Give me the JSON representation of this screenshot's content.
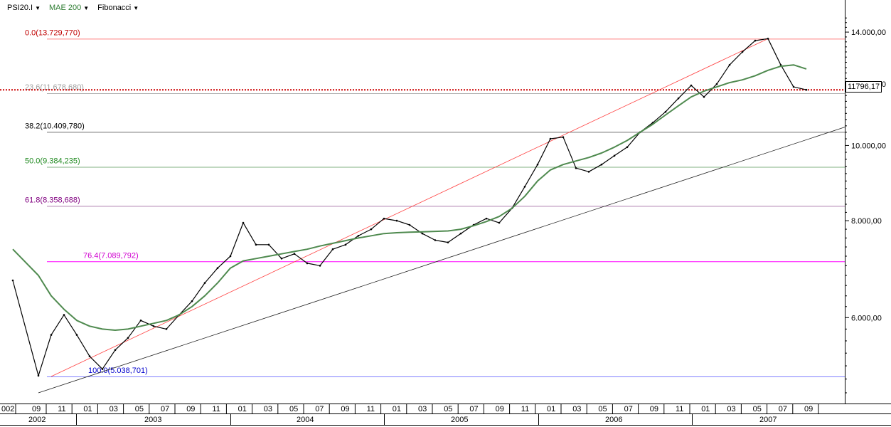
{
  "toolbar": {
    "symbol": "PSI20.I",
    "indicator": "MAE 200",
    "indicator_color": "#2e7d32",
    "tool": "Fibonacci"
  },
  "price_label": "11796,17",
  "chart_data": {
    "type": "line",
    "title": "",
    "xlabel": "",
    "ylabel": "",
    "y_scale": "log",
    "ylim": [
      4650,
      14700
    ],
    "grid": false,
    "x": [
      "2002-07",
      "2002-09",
      "2002-10",
      "2002-11",
      "2002-12",
      "2003-01",
      "2003-02",
      "2003-03",
      "2003-04",
      "2003-05",
      "2003-06",
      "2003-07",
      "2003-08",
      "2003-09",
      "2003-10",
      "2003-11",
      "2003-12",
      "2004-01",
      "2004-02",
      "2004-03",
      "2004-04",
      "2004-05",
      "2004-06",
      "2004-07",
      "2004-08",
      "2004-09",
      "2004-10",
      "2004-11",
      "2004-12",
      "2005-01",
      "2005-02",
      "2005-03",
      "2005-04",
      "2005-05",
      "2005-06",
      "2005-07",
      "2005-08",
      "2005-09",
      "2005-10",
      "2005-11",
      "2005-12",
      "2006-01",
      "2006-02",
      "2006-03",
      "2006-04",
      "2006-05",
      "2006-06",
      "2006-07",
      "2006-08",
      "2006-09",
      "2006-10",
      "2006-11",
      "2006-12",
      "2007-01",
      "2007-02",
      "2007-03",
      "2007-04",
      "2007-05",
      "2007-06",
      "2007-07",
      "2007-08",
      "2007-09"
    ],
    "series": [
      {
        "name": "PSI20.I",
        "color": "#000000",
        "values": [
          6700,
          5050,
          5700,
          6050,
          5700,
          5350,
          5150,
          5450,
          5650,
          5950,
          5850,
          5800,
          6050,
          6300,
          6650,
          6950,
          7200,
          7950,
          7450,
          7450,
          7150,
          7250,
          7050,
          7000,
          7350,
          7450,
          7650,
          7800,
          8050,
          8000,
          7900,
          7700,
          7550,
          7500,
          7700,
          7900,
          8050,
          7950,
          8300,
          8850,
          9450,
          10200,
          10250,
          9350,
          9250,
          9450,
          9700,
          9950,
          10400,
          10700,
          11050,
          11500,
          11950,
          11550,
          12000,
          12700,
          13200,
          13650,
          13729.77,
          12700,
          11900,
          11796.17
        ]
      },
      {
        "name": "MAE 200",
        "color": "#4f8a4f",
        "values": [
          7350,
          6800,
          6400,
          6150,
          5950,
          5850,
          5800,
          5780,
          5800,
          5850,
          5900,
          5950,
          6050,
          6200,
          6400,
          6650,
          6950,
          7100,
          7150,
          7200,
          7250,
          7300,
          7350,
          7420,
          7480,
          7540,
          7600,
          7650,
          7700,
          7720,
          7730,
          7740,
          7750,
          7760,
          7800,
          7880,
          7980,
          8100,
          8300,
          8600,
          9000,
          9300,
          9450,
          9550,
          9650,
          9780,
          9950,
          10150,
          10400,
          10650,
          10950,
          11250,
          11550,
          11750,
          11900,
          12050,
          12150,
          12300,
          12500,
          12650,
          12700,
          12550
        ]
      }
    ],
    "y_ticks": [
      {
        "value": 6000,
        "label": "6.000,00"
      },
      {
        "value": 8000,
        "label": "8.000,00"
      },
      {
        "value": 10000,
        "label": "10.000,00"
      },
      {
        "value": 12000,
        "label": "12.000,00"
      },
      {
        "value": 14000,
        "label": "14.000,00"
      }
    ],
    "x_month_labels": [
      "002",
      "09",
      "11",
      "01",
      "03",
      "05",
      "07",
      "09",
      "11",
      "01",
      "03",
      "05",
      "07",
      "09",
      "11",
      "01",
      "03",
      "05",
      "07",
      "09",
      "11",
      "01",
      "03",
      "05",
      "07",
      "09",
      "11",
      "01",
      "03",
      "05",
      "07",
      "09"
    ],
    "x_year_labels": [
      "2002",
      "2003",
      "2004",
      "2005",
      "2006",
      "2007"
    ],
    "fibonacci_levels": [
      {
        "label": "0.0(13.729,770)",
        "value": 13729.77,
        "color": "#ff8080",
        "text_color": "#c00000"
      },
      {
        "label": "23.6(11.678,680)",
        "value": 11678.68,
        "color": "#b0b0b0",
        "text_color": "#a0a0a0"
      },
      {
        "label": "38.2(10.409,780)",
        "value": 10409.78,
        "color": "#707070",
        "text_color": "#000000"
      },
      {
        "label": "50.0(9.384,235)",
        "value": 9384.235,
        "color": "#80b080",
        "text_color": "#228b22"
      },
      {
        "label": "61.8(8.358,688)",
        "value": 8358.688,
        "color": "#b080b0",
        "text_color": "#800080"
      },
      {
        "label": "76.4(7.089,792)",
        "value": 7089.792,
        "color": "#ff00ff",
        "text_color": "#d000d0"
      },
      {
        "label": "100.0(5.038,701)",
        "value": 5038.701,
        "color": "#8080ff",
        "text_color": "#0000cc"
      }
    ],
    "current_price_value": 11796.17,
    "current_price_line_color": "#cc0000",
    "trendlines": [
      {
        "name": "fibonacci-anchor",
        "color": "#ff4040",
        "from": {
          "x": "2002-10",
          "y": 5038.7
        },
        "to": {
          "x": "2007-06",
          "y": 13729.77
        }
      },
      {
        "name": "support",
        "color": "#202020",
        "from": {
          "x": "2002-09",
          "y": 4800
        },
        "to": {
          "x": "2007-12",
          "y": 10560
        }
      }
    ]
  }
}
